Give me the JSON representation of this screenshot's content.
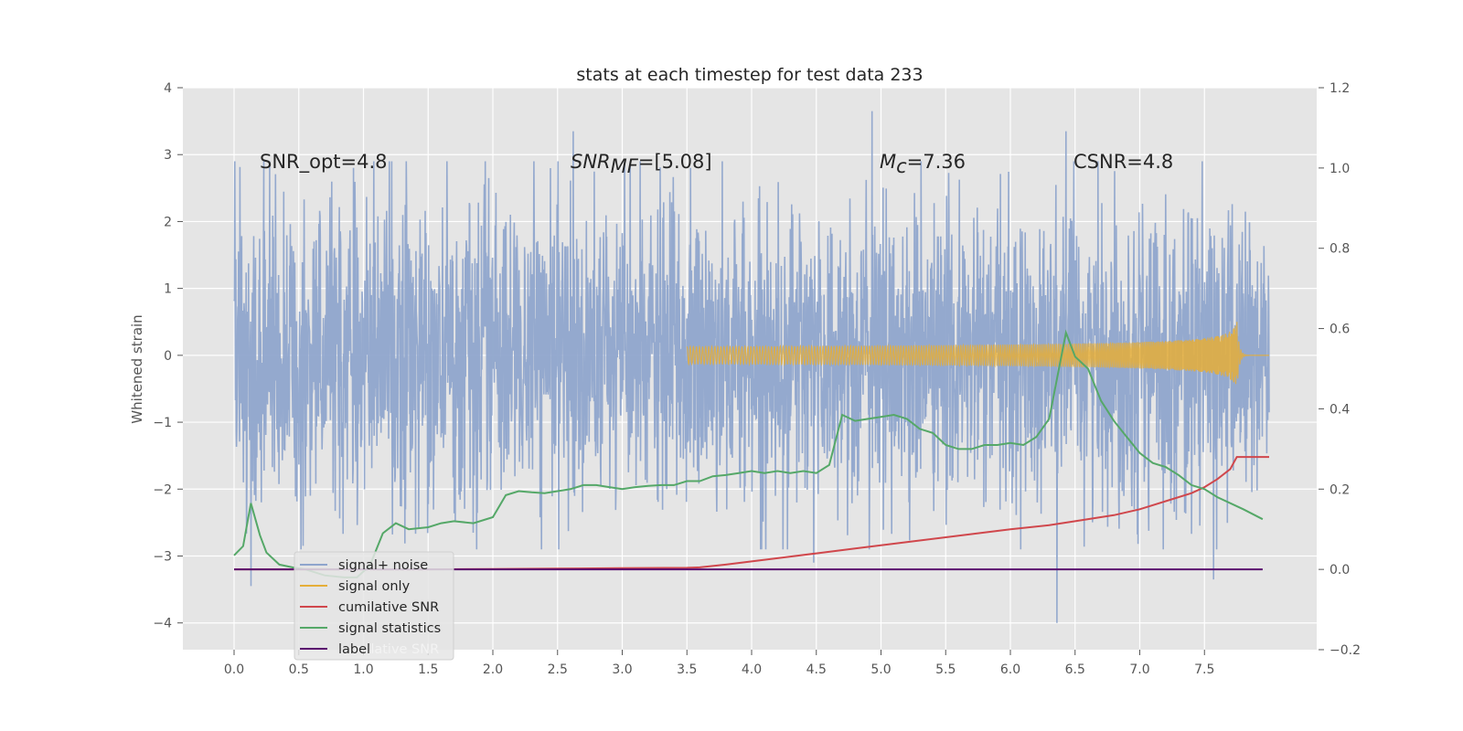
{
  "chart_data": {
    "type": "line",
    "title": "stats at each timestep for test data 233",
    "ylabel_left": "Whitened strain",
    "xlim": [
      -0.35,
      8.3
    ],
    "ylim_left": [
      -4.4,
      4.0
    ],
    "ylim_right": [
      -0.2,
      1.2
    ],
    "x_ticks": [
      "0.0",
      "0.5",
      "1.0",
      "1.5",
      "2.0",
      "2.5",
      "3.0",
      "3.5",
      "4.0",
      "4.5",
      "5.0",
      "5.5",
      "6.0",
      "6.5",
      "7.0",
      "7.5"
    ],
    "y_left_ticks": [
      "−4",
      "−3",
      "−2",
      "−1",
      "0",
      "1",
      "2",
      "3",
      "4"
    ],
    "y_right_ticks": [
      "−0.2",
      "0.0",
      "0.2",
      "0.4",
      "0.6",
      "0.8",
      "1.0",
      "1.2"
    ],
    "grid": true,
    "legend_position": "lower-left",
    "annotations": {
      "snr_opt": "SNR_opt=4.8",
      "snr_mf_main": "SNR",
      "snr_mf_sub": "MF",
      "snr_mf_value": "=[5.08]",
      "mc_main": "M",
      "mc_sub": "c",
      "mc_value": "=7.36",
      "csnr": "CSNR=4.8"
    },
    "series": [
      {
        "name": "signal+ noise",
        "axis": "left",
        "color": "#8fa5cc",
        "kind": "noise",
        "x_range": [
          0.0,
          8.0
        ],
        "envelope": 1.1,
        "peak_values": [
          {
            "x": 0.13,
            "y": -3.45
          },
          {
            "x": 2.62,
            "y": 3.35
          },
          {
            "x": 4.48,
            "y": -3.1
          },
          {
            "x": 4.93,
            "y": 3.65
          },
          {
            "x": 6.36,
            "y": -4.0
          },
          {
            "x": 6.43,
            "y": 3.35
          },
          {
            "x": 7.57,
            "y": -3.35
          }
        ]
      },
      {
        "name": "signal only",
        "axis": "left",
        "color": "#e5ae38",
        "kind": "chirp",
        "x_range": [
          3.5,
          8.0
        ],
        "merger_x": 7.75,
        "peak_amplitude": 0.55
      },
      {
        "name": "cumilative SNR",
        "axis": "right",
        "color": "#d0474c",
        "x": [
          0.0,
          0.5,
          1.0,
          1.5,
          2.0,
          2.5,
          3.0,
          3.5,
          3.6,
          3.8,
          4.0,
          4.3,
          4.5,
          4.8,
          5.0,
          5.3,
          5.5,
          5.8,
          6.0,
          6.3,
          6.5,
          6.8,
          7.0,
          7.2,
          7.4,
          7.5,
          7.6,
          7.7,
          7.75,
          7.8,
          8.0
        ],
        "y": [
          0.0,
          0.0,
          0.0,
          0.0,
          0.001,
          0.002,
          0.003,
          0.004,
          0.005,
          0.012,
          0.02,
          0.032,
          0.04,
          0.052,
          0.06,
          0.072,
          0.08,
          0.092,
          0.1,
          0.11,
          0.12,
          0.135,
          0.15,
          0.17,
          0.19,
          0.205,
          0.225,
          0.25,
          0.28,
          0.28,
          0.28
        ]
      },
      {
        "name": "signal statistics",
        "axis": "right",
        "color": "#55a868",
        "x": [
          0.0,
          0.07,
          0.13,
          0.2,
          0.25,
          0.35,
          0.45,
          0.55,
          0.7,
          0.85,
          0.95,
          1.05,
          1.15,
          1.25,
          1.35,
          1.5,
          1.6,
          1.7,
          1.85,
          2.0,
          2.1,
          2.2,
          2.3,
          2.4,
          2.5,
          2.6,
          2.7,
          2.8,
          2.9,
          3.0,
          3.1,
          3.2,
          3.3,
          3.4,
          3.5,
          3.6,
          3.7,
          3.8,
          3.9,
          4.0,
          4.1,
          4.2,
          4.3,
          4.4,
          4.5,
          4.6,
          4.7,
          4.8,
          4.9,
          5.0,
          5.1,
          5.2,
          5.3,
          5.4,
          5.5,
          5.6,
          5.7,
          5.8,
          5.9,
          6.0,
          6.1,
          6.2,
          6.3,
          6.43,
          6.5,
          6.6,
          6.7,
          6.8,
          6.9,
          7.0,
          7.1,
          7.2,
          7.3,
          7.4,
          7.5,
          7.6,
          7.7,
          7.8,
          7.95
        ],
        "y": [
          0.035,
          0.058,
          0.165,
          0.085,
          0.042,
          0.012,
          0.005,
          0.0,
          -0.015,
          -0.02,
          -0.02,
          0.01,
          0.09,
          0.115,
          0.1,
          0.105,
          0.115,
          0.12,
          0.115,
          0.13,
          0.185,
          0.195,
          0.192,
          0.19,
          0.195,
          0.2,
          0.21,
          0.21,
          0.205,
          0.2,
          0.205,
          0.208,
          0.21,
          0.21,
          0.22,
          0.22,
          0.232,
          0.235,
          0.24,
          0.245,
          0.24,
          0.245,
          0.24,
          0.245,
          0.24,
          0.26,
          0.385,
          0.37,
          0.375,
          0.38,
          0.385,
          0.375,
          0.35,
          0.34,
          0.31,
          0.3,
          0.3,
          0.31,
          0.31,
          0.315,
          0.31,
          0.33,
          0.375,
          0.59,
          0.53,
          0.5,
          0.42,
          0.37,
          0.33,
          0.29,
          0.265,
          0.255,
          0.235,
          0.21,
          0.2,
          0.18,
          0.165,
          0.15,
          0.125
        ]
      },
      {
        "name": "label",
        "axis": "right",
        "color": "#5a0a6e",
        "x": [
          0.0,
          7.95
        ],
        "y": [
          0.0,
          0.0
        ]
      }
    ],
    "legend_ghost_label": "cumilative SNR"
  }
}
